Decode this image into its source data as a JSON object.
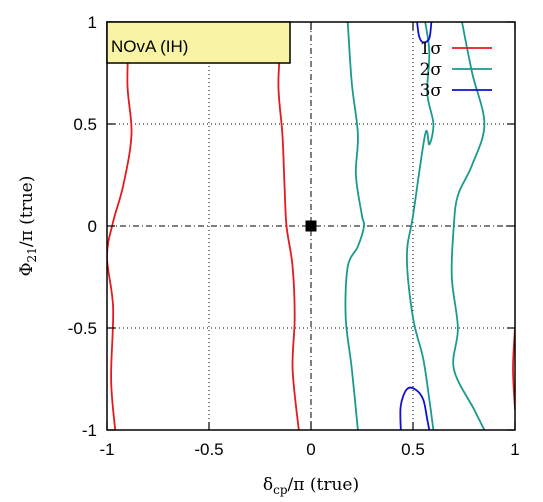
{
  "chart_data": {
    "type": "line",
    "title": "NOvA (IH)",
    "xlabel": "δcp/π (true)",
    "xlabel_main": "δ",
    "xlabel_sub": "cp",
    "xlabel_rest": "/π (true)",
    "ylabel": "Φ21/π (true)",
    "ylabel_main": "Φ",
    "ylabel_sub": "21",
    "ylabel_rest": "/π (true)",
    "xlim": [
      -1,
      1
    ],
    "ylim": [
      -1,
      1
    ],
    "xticks": [
      -1,
      -0.5,
      0,
      0.5,
      1
    ],
    "yticks": [
      -1,
      -0.5,
      0,
      0.5,
      1
    ],
    "xtick_labels": [
      "-1",
      "-0.5",
      "0",
      "0.5",
      "1"
    ],
    "ytick_labels": [
      "-1",
      "-0.5",
      "0",
      "0.5",
      "1"
    ],
    "grid": true,
    "legend_position": "top-right",
    "marker_point": {
      "x": 0,
      "y": 0
    },
    "series": [
      {
        "name": "1σ",
        "color": "#e41a1c",
        "curves": [
          [
            [
              -0.89,
              1
            ],
            [
              -0.9,
              0.7
            ],
            [
              -0.88,
              0.45
            ],
            [
              -0.92,
              0.2
            ],
            [
              -0.97,
              0.02
            ],
            [
              -1,
              -0.15
            ],
            [
              -0.97,
              -0.4
            ],
            [
              -0.98,
              -0.75
            ],
            [
              -0.96,
              -1
            ]
          ],
          [
            [
              -0.14,
              1
            ],
            [
              -0.16,
              0.7
            ],
            [
              -0.14,
              0.45
            ],
            [
              -0.13,
              0.2
            ],
            [
              -0.12,
              0
            ],
            [
              -0.09,
              -0.2
            ],
            [
              -0.08,
              -0.45
            ],
            [
              -0.09,
              -0.7
            ],
            [
              -0.06,
              -1
            ]
          ],
          [
            [
              1,
              -0.5
            ],
            [
              0.99,
              -0.7
            ],
            [
              1,
              -0.9
            ]
          ]
        ]
      },
      {
        "name": "2σ",
        "color": "#1a9a8e",
        "curves": [
          [
            [
              0.18,
              1
            ],
            [
              0.2,
              0.7
            ],
            [
              0.23,
              0.45
            ],
            [
              0.22,
              0.25
            ],
            [
              0.25,
              0.05
            ],
            [
              0.26,
              0
            ],
            [
              0.23,
              -0.1
            ],
            [
              0.18,
              -0.2
            ],
            [
              0.17,
              -0.45
            ],
            [
              0.2,
              -0.7
            ],
            [
              0.23,
              -1
            ]
          ],
          [
            [
              0.56,
              1
            ],
            [
              0.58,
              0.85
            ],
            [
              0.57,
              0.65
            ],
            [
              0.6,
              0.5
            ],
            [
              0.58,
              0.4
            ],
            [
              0.56,
              0.45
            ],
            [
              0.5,
              0.05
            ],
            [
              0.47,
              -0.15
            ],
            [
              0.5,
              -0.45
            ],
            [
              0.55,
              -0.65
            ],
            [
              0.58,
              -0.85
            ],
            [
              0.6,
              -1
            ]
          ],
          [
            [
              0.74,
              1
            ],
            [
              0.79,
              0.75
            ],
            [
              0.85,
              0.5
            ],
            [
              0.79,
              0.3
            ],
            [
              0.72,
              0.15
            ],
            [
              0.7,
              0
            ],
            [
              0.69,
              -0.25
            ],
            [
              0.72,
              -0.5
            ],
            [
              0.7,
              -0.7
            ],
            [
              0.8,
              -0.9
            ],
            [
              0.85,
              -1
            ]
          ]
        ]
      },
      {
        "name": "3σ",
        "color": "#1010d0",
        "curves": [
          [
            [
              0.52,
              1
            ],
            [
              0.53,
              0.93
            ],
            [
              0.55,
              0.9
            ],
            [
              0.58,
              0.92
            ],
            [
              0.59,
              1
            ]
          ],
          [
            [
              0.44,
              -1
            ],
            [
              0.44,
              -0.88
            ],
            [
              0.47,
              -0.8
            ],
            [
              0.51,
              -0.8
            ],
            [
              0.55,
              -0.85
            ],
            [
              0.57,
              -0.95
            ],
            [
              0.58,
              -1
            ]
          ]
        ]
      }
    ]
  }
}
